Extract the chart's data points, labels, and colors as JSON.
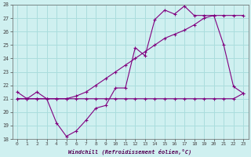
{
  "title": "Windchill (Refroidissement éolien,°C)",
  "bg_color": "#cff0f0",
  "grid_color": "#aadddd",
  "line_color": "#800080",
  "xlim": [
    -0.5,
    23.5
  ],
  "ylim": [
    18,
    28
  ],
  "xticks": [
    0,
    1,
    2,
    3,
    4,
    5,
    6,
    7,
    8,
    9,
    10,
    11,
    12,
    13,
    14,
    15,
    16,
    17,
    18,
    19,
    20,
    21,
    22,
    23
  ],
  "yticks": [
    18,
    19,
    20,
    21,
    22,
    23,
    24,
    25,
    26,
    27,
    28
  ],
  "hours": [
    0,
    1,
    2,
    3,
    4,
    5,
    6,
    7,
    8,
    9,
    10,
    11,
    12,
    13,
    14,
    15,
    16,
    17,
    18,
    19,
    20,
    21,
    22,
    23
  ],
  "temp": [
    21.0,
    21.0,
    21.5,
    21.0,
    19.2,
    18.2,
    18.6,
    19.4,
    20.3,
    20.5,
    21.8,
    21.8,
    24.8,
    24.2,
    26.9,
    27.6,
    27.3,
    27.9,
    27.2,
    27.2,
    27.2,
    25.0,
    21.9,
    21.4
  ],
  "windchill": [
    21.5,
    21.0,
    21.0,
    21.0,
    21.0,
    21.0,
    21.0,
    21.0,
    21.0,
    21.0,
    21.0,
    21.0,
    21.0,
    21.0,
    21.0,
    21.0,
    21.0,
    21.0,
    21.0,
    21.0,
    21.0,
    21.0,
    21.0,
    21.4
  ],
  "linear": [
    21.0,
    21.0,
    21.0,
    21.0,
    21.0,
    21.0,
    21.2,
    21.5,
    22.0,
    22.5,
    23.0,
    23.5,
    24.0,
    24.5,
    25.0,
    25.5,
    25.8,
    26.1,
    26.5,
    27.0,
    27.2,
    27.2,
    27.2,
    27.2
  ]
}
